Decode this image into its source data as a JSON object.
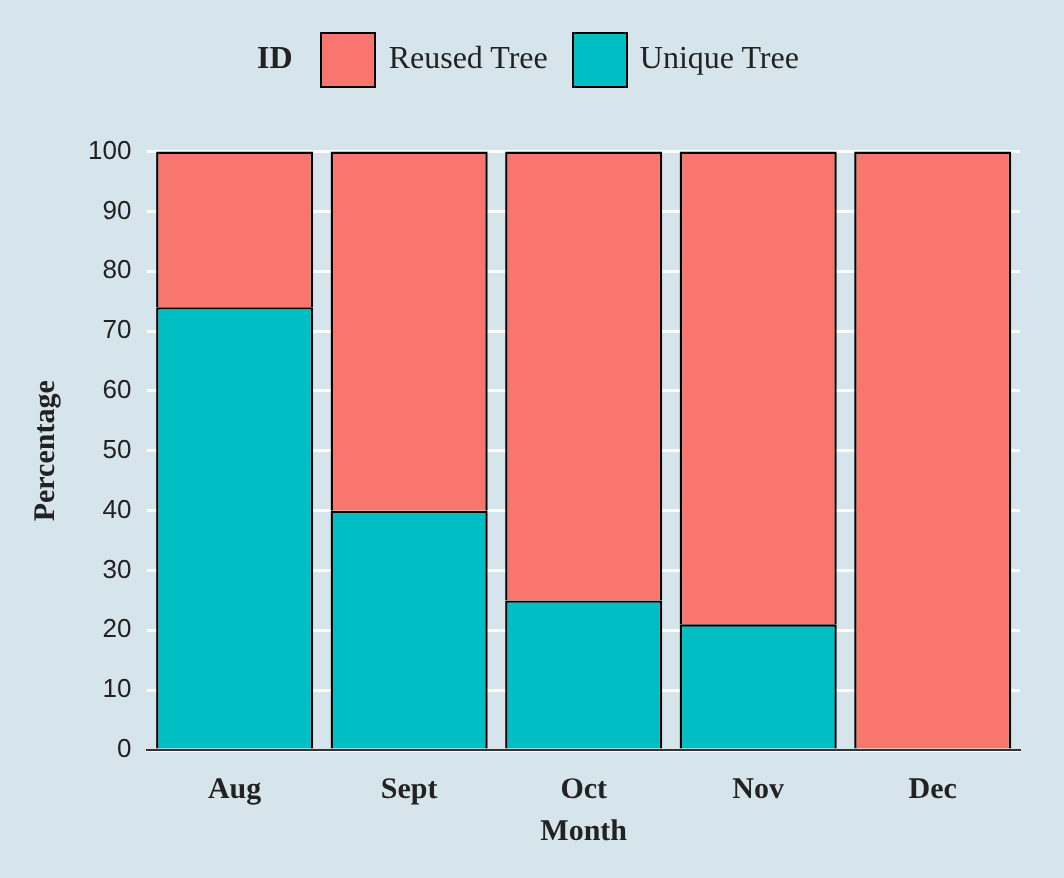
{
  "chart_data": {
    "type": "bar",
    "stacked": true,
    "xlabel": "Month",
    "ylabel": "Percentage",
    "legend_title": "ID",
    "legend": "top",
    "categories": [
      "Aug",
      "Sept",
      "Oct",
      "Nov",
      "Dec"
    ],
    "series": [
      {
        "name": "Unique Tree",
        "color": "#00bfc4",
        "values": [
          74,
          40,
          25,
          21,
          0
        ]
      },
      {
        "name": "Reused Tree",
        "color": "#f8766d",
        "values": [
          26,
          60,
          75,
          79,
          100
        ]
      }
    ],
    "ylim": [
      0,
      100
    ],
    "yticks": [
      0,
      10,
      20,
      30,
      40,
      50,
      60,
      70,
      80,
      90,
      100
    ],
    "grid": "y"
  }
}
